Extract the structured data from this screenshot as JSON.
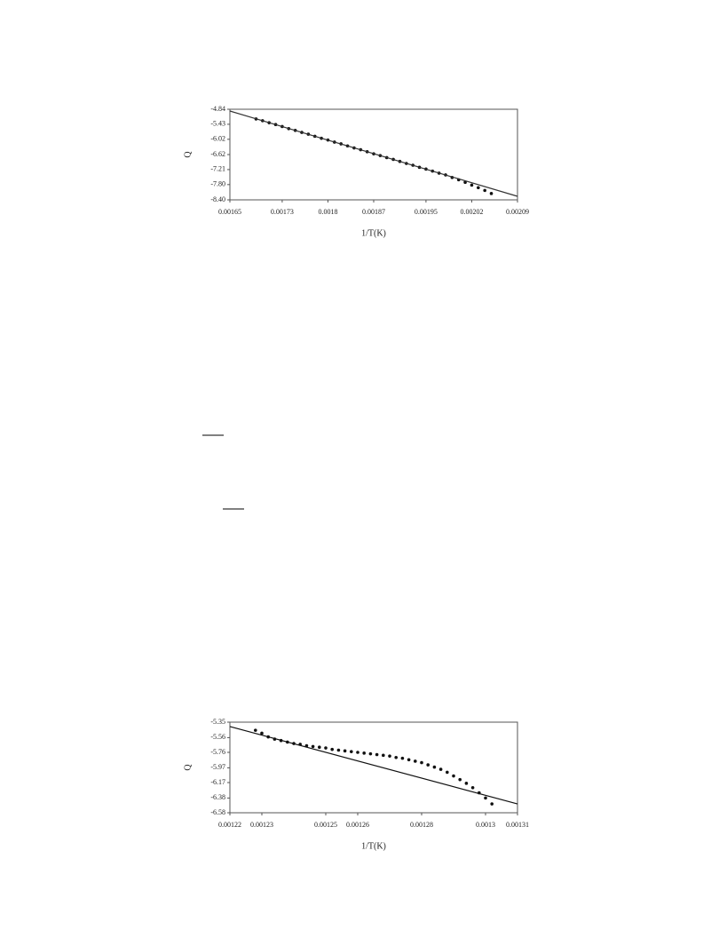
{
  "chart_data": [
    {
      "type": "scatter",
      "y_label": "Q",
      "x_label": "1/T(K)",
      "xlim": [
        0.00165,
        0.00209
      ],
      "xticks": [
        0.00165,
        0.00173,
        0.0018,
        0.00187,
        0.00195,
        0.00202,
        0.00209
      ],
      "ylim": [
        -8.4,
        -4.84
      ],
      "yticks": [
        {
          "value": -8.4,
          "label": "-8.40"
        },
        {
          "value": -7.8,
          "label": "-7.80"
        },
        -7.21,
        -6.62,
        -6.02,
        -5.43,
        -4.84
      ],
      "series": [
        {
          "style": "markers",
          "color": "#111111",
          "x": [
            0.00169,
            0.0017,
            0.00171,
            0.00172,
            0.00173,
            0.00174,
            0.00175,
            0.00176,
            0.00177,
            0.00178,
            0.00179,
            0.0018,
            0.00181,
            0.00182,
            0.00183,
            0.00184,
            0.00185,
            0.00186,
            0.00187,
            0.00188,
            0.00189,
            0.0019,
            0.00191,
            0.00192,
            0.00193,
            0.00194,
            0.00195,
            0.00196,
            0.00197,
            0.00198,
            0.00199,
            0.002,
            0.00201,
            0.00202,
            0.00203,
            0.00204,
            0.00205
          ],
          "values": [
            -5.22,
            -5.29,
            -5.37,
            -5.44,
            -5.52,
            -5.6,
            -5.67,
            -5.75,
            -5.82,
            -5.9,
            -5.98,
            -6.05,
            -6.13,
            -6.2,
            -6.28,
            -6.36,
            -6.43,
            -6.51,
            -6.59,
            -6.66,
            -6.74,
            -6.81,
            -6.89,
            -6.97,
            -7.04,
            -7.12,
            -7.19,
            -7.27,
            -7.35,
            -7.42,
            -7.52,
            -7.61,
            -7.71,
            -7.82,
            -7.92,
            -8.03,
            -8.15
          ]
        },
        {
          "style": "line",
          "color": "#333333",
          "x": [
            0.00165,
            0.00209
          ],
          "values": [
            -4.91,
            -8.26
          ]
        }
      ]
    },
    {
      "type": "scatter",
      "y_label": "Q",
      "x_label": "1/T(K)",
      "xlim": [
        0.00122,
        0.00131
      ],
      "xticks": [
        0.00122,
        0.00123,
        0.00125,
        0.00126,
        0.00128,
        0.0013,
        0.00131
      ],
      "ylim": [
        -6.58,
        -5.35
      ],
      "yticks": [
        -6.58,
        -6.38,
        -6.17,
        -5.97,
        -5.76,
        -5.56,
        -5.35
      ],
      "series": [
        {
          "style": "markers",
          "color": "#111111",
          "x": [
            0.001228,
            0.00123,
            0.001232,
            0.001234,
            0.001236,
            0.001238,
            0.00124,
            0.001242,
            0.001244,
            0.001246,
            0.001248,
            0.00125,
            0.001252,
            0.001254,
            0.001256,
            0.001258,
            0.00126,
            0.001262,
            0.001264,
            0.001266,
            0.001268,
            0.00127,
            0.001272,
            0.001274,
            0.001276,
            0.001278,
            0.00128,
            0.001282,
            0.001284,
            0.001286,
            0.001288,
            0.00129,
            0.001292,
            0.001294,
            0.001296,
            0.001298,
            0.0013,
            0.001302
          ],
          "values": [
            -5.46,
            -5.5,
            -5.55,
            -5.58,
            -5.6,
            -5.62,
            -5.64,
            -5.65,
            -5.67,
            -5.68,
            -5.69,
            -5.7,
            -5.72,
            -5.73,
            -5.74,
            -5.75,
            -5.76,
            -5.77,
            -5.78,
            -5.79,
            -5.8,
            -5.81,
            -5.83,
            -5.84,
            -5.86,
            -5.88,
            -5.9,
            -5.93,
            -5.96,
            -5.99,
            -6.03,
            -6.08,
            -6.13,
            -6.18,
            -6.24,
            -6.31,
            -6.38,
            -6.46
          ]
        },
        {
          "style": "line",
          "color": "#111111",
          "x": [
            0.00122,
            0.00131
          ],
          "values": [
            -5.41,
            -6.46
          ]
        }
      ]
    }
  ]
}
